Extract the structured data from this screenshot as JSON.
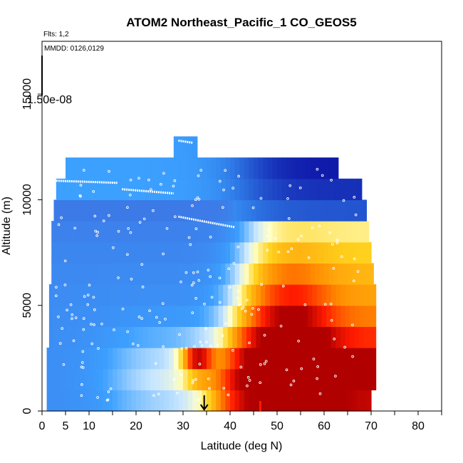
{
  "chart_data": {
    "type": "heatmap",
    "title": "ATOM2 Northeast_Pacific_1 CO_GEOS5",
    "subtitle_flights": "Flts: 1,2",
    "subtitle_dates": "MMDD: 0126,0129",
    "xlabel": "Latitude (deg N)",
    "ylabel": "Altitude (m)",
    "xlim": [
      0,
      85
    ],
    "ylim": [
      0,
      17500
    ],
    "x_ticks_major": [
      0,
      5,
      10,
      20,
      30,
      40,
      50,
      60,
      70,
      80
    ],
    "x_ticks_minor": [
      15,
      25,
      35,
      45,
      55,
      65,
      75,
      85
    ],
    "y_ticks": [
      0,
      5000,
      10000,
      15000
    ],
    "colorbar_label": "1.50e-08",
    "arrow_latitude": 34.5,
    "colors": {
      "darkred": "#b00000",
      "red": "#ff1a00",
      "orange": "#ff8c00",
      "yellow": "#ffd21e",
      "paleyellow": "#ffffc8",
      "paleblue": "#c8e6ff",
      "skyblue": "#3ca0ff",
      "blue": "#3c78e6",
      "darkblue": "#0a0aa0",
      "purple": "#7828e6"
    },
    "altitude_bands_m": [
      500,
      1500,
      2500,
      3500,
      4500,
      5500,
      6500,
      7500,
      8500,
      9500,
      10500,
      11500,
      12500
    ],
    "latitude_extent_by_band": [
      [
        1,
        70
      ],
      [
        1,
        71
      ],
      [
        1,
        71
      ],
      [
        1.5,
        71
      ],
      [
        1.5,
        71
      ],
      [
        1.5,
        71
      ],
      [
        2,
        70.5
      ],
      [
        2,
        70
      ],
      [
        2,
        69.5
      ],
      [
        2.5,
        69
      ],
      [
        3,
        68
      ],
      [
        5,
        63
      ],
      [
        28,
        33
      ]
    ],
    "red_core_latitude": [
      48,
      58
    ],
    "dark_red_spot": {
      "latitude": 33,
      "altitude_m": 2300
    }
  }
}
